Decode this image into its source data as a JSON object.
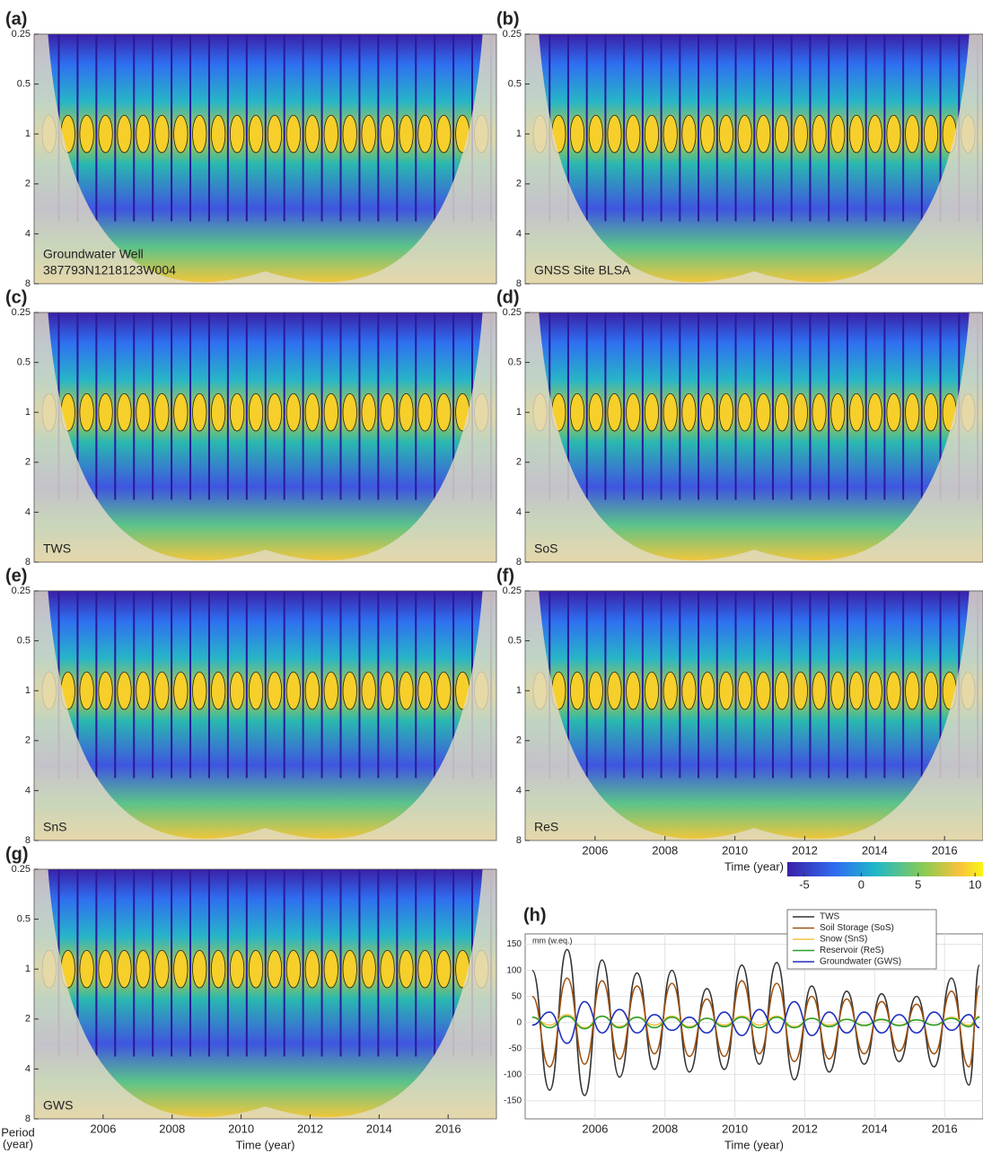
{
  "chart_data": [
    {
      "type": "wavelet",
      "panel": "(a)",
      "labels": [
        "Groundwater Well",
        "387793N1218123W004"
      ],
      "ylim": [
        0.25,
        8
      ],
      "yticks": [
        0.25,
        0.5,
        1,
        2,
        4,
        8
      ],
      "log_y": true,
      "y_inverted": true
    },
    {
      "type": "wavelet",
      "panel": "(b)",
      "labels": [
        "GNSS Site BLSA"
      ],
      "ylim": [
        0.25,
        8
      ],
      "yticks": [
        0.25,
        0.5,
        1,
        2,
        4,
        8
      ],
      "log_y": true,
      "y_inverted": true
    },
    {
      "type": "wavelet",
      "panel": "(c)",
      "labels": [
        "TWS"
      ],
      "ylim": [
        0.25,
        8
      ],
      "yticks": [
        0.25,
        0.5,
        1,
        2,
        4,
        8
      ],
      "log_y": true,
      "y_inverted": true
    },
    {
      "type": "wavelet",
      "panel": "(d)",
      "labels": [
        "SoS"
      ],
      "ylim": [
        0.25,
        8
      ],
      "yticks": [
        0.25,
        0.5,
        1,
        2,
        4,
        8
      ],
      "log_y": true,
      "y_inverted": true
    },
    {
      "type": "wavelet",
      "panel": "(e)",
      "labels": [
        "SnS"
      ],
      "ylim": [
        0.25,
        8
      ],
      "yticks": [
        0.25,
        0.5,
        1,
        2,
        4,
        8
      ],
      "log_y": true,
      "y_inverted": true
    },
    {
      "type": "wavelet",
      "panel": "(f)",
      "labels": [
        "ReS"
      ],
      "ylim": [
        0.25,
        8
      ],
      "yticks": [
        0.25,
        0.5,
        1,
        2,
        4,
        8
      ],
      "log_y": true,
      "y_inverted": true,
      "xlabel": "Time (year)",
      "xlim": [
        2004,
        2017.1
      ],
      "xticks": [
        2006,
        2008,
        2010,
        2012,
        2014,
        2016
      ]
    },
    {
      "type": "wavelet",
      "panel": "(g)",
      "labels": [
        "GWS"
      ],
      "ylim": [
        0.25,
        8
      ],
      "yticks": [
        0.25,
        0.5,
        1,
        2,
        4,
        8
      ],
      "log_y": true,
      "y_inverted": true,
      "ylabel": [
        "Period",
        "(year)"
      ],
      "xlabel": "Time (year)",
      "xlim": [
        2004,
        2017.4
      ],
      "xticks": [
        2006,
        2008,
        2010,
        2012,
        2014,
        2016
      ]
    },
    {
      "type": "colorbar",
      "lim": [
        -6.5,
        10.7
      ],
      "ticks": [
        -5,
        0,
        5,
        10
      ]
    },
    {
      "type": "line",
      "panel": "(h)",
      "ylabel": "mm (w.eq.)",
      "xlabel": "Time (year)",
      "xlim": [
        2004,
        2017.1
      ],
      "ylim": [
        -185,
        170
      ],
      "xticks": [
        2006,
        2008,
        2010,
        2012,
        2014,
        2016
      ],
      "yticks": [
        -150,
        -100,
        -50,
        0,
        50,
        100,
        150
      ],
      "grid": true,
      "legend": "upper right",
      "x": [
        2004.2,
        2004.7,
        2005.2,
        2005.7,
        2006.2,
        2006.7,
        2007.2,
        2007.7,
        2008.2,
        2008.7,
        2009.2,
        2009.7,
        2010.2,
        2010.7,
        2011.2,
        2011.7,
        2012.2,
        2012.7,
        2013.2,
        2013.7,
        2014.2,
        2014.7,
        2015.2,
        2015.7,
        2016.2,
        2016.7,
        2017.0
      ],
      "series": [
        {
          "name": "TWS",
          "color": "#333333",
          "values": [
            100,
            -130,
            140,
            -140,
            120,
            -105,
            95,
            -90,
            100,
            -95,
            65,
            -90,
            110,
            -80,
            115,
            -110,
            70,
            -95,
            60,
            -80,
            55,
            -75,
            50,
            -85,
            85,
            -120,
            110
          ]
        },
        {
          "name": "Soil Storage (SoS)",
          "color": "#a0520f",
          "values": [
            50,
            -85,
            85,
            -80,
            80,
            -70,
            70,
            -60,
            75,
            -65,
            45,
            -65,
            80,
            -60,
            75,
            -75,
            50,
            -70,
            45,
            -60,
            40,
            -55,
            35,
            -60,
            60,
            -85,
            70
          ]
        },
        {
          "name": "Snow (SnS)",
          "color": "#f5c242",
          "values": [
            10,
            -5,
            15,
            -10,
            12,
            -8,
            10,
            -5,
            12,
            -8,
            8,
            -5,
            12,
            -5,
            12,
            -8,
            8,
            -5,
            6,
            -5,
            5,
            -5,
            5,
            -5,
            10,
            -5,
            12
          ]
        },
        {
          "name": "Reservoir (ReS)",
          "color": "#2aa02a",
          "values": [
            10,
            -10,
            12,
            -12,
            12,
            -10,
            10,
            -10,
            10,
            -10,
            8,
            -8,
            10,
            -10,
            10,
            -10,
            8,
            -8,
            6,
            -6,
            6,
            -6,
            5,
            -5,
            8,
            -8,
            10
          ]
        },
        {
          "name": "Groundwater (GWS)",
          "color": "#1f2fbf",
          "values": [
            -5,
            20,
            -40,
            40,
            -20,
            25,
            -20,
            15,
            -15,
            10,
            -20,
            20,
            -25,
            25,
            -20,
            40,
            -25,
            20,
            -20,
            20,
            -20,
            15,
            -20,
            20,
            -15,
            15,
            -10
          ]
        }
      ]
    }
  ]
}
